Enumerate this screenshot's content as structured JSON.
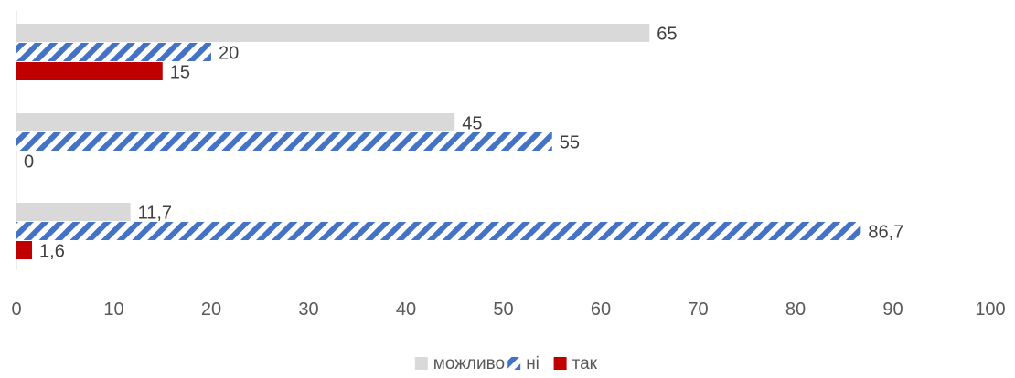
{
  "chart_data": {
    "type": "bar",
    "orientation": "horizontal",
    "categories": [
      "",
      "",
      ""
    ],
    "series": [
      {
        "name": "так",
        "values": [
          15,
          0,
          1.6
        ],
        "labels": [
          "15",
          "0",
          "1,6"
        ],
        "color": "#C00000",
        "pattern": "solid"
      },
      {
        "name": "ні",
        "values": [
          20,
          55,
          86.7
        ],
        "labels": [
          "20",
          "55",
          "86,7"
        ],
        "color": "#4472C4",
        "pattern": "diagonal-stripes"
      },
      {
        "name": "можливо",
        "values": [
          65,
          45,
          11.7
        ],
        "labels": [
          "65",
          "45",
          "11,7"
        ],
        "color": "#D9D9D9",
        "pattern": "solid"
      }
    ],
    "xlim": [
      0,
      100
    ],
    "x_ticks": [
      "0",
      "10",
      "20",
      "30",
      "40",
      "50",
      "60",
      "70",
      "80",
      "90",
      "100"
    ],
    "grid": false,
    "legend": {
      "position": "bottom",
      "order": [
        "можливо",
        "ні",
        "так"
      ]
    },
    "title": "",
    "xlabel": "",
    "ylabel": ""
  }
}
